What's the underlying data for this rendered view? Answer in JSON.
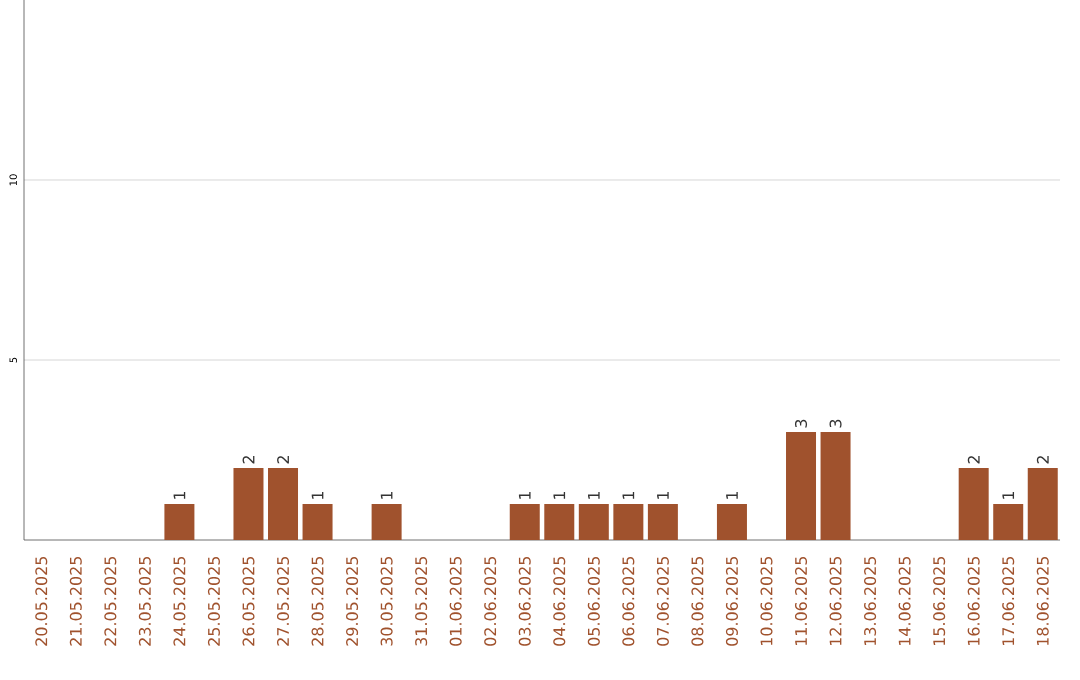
{
  "chart_data": {
    "type": "bar",
    "categories": [
      "20.05.2025",
      "21.05.2025",
      "22.05.2025",
      "23.05.2025",
      "24.05.2025",
      "25.05.2025",
      "26.05.2025",
      "27.05.2025",
      "28.05.2025",
      "29.05.2025",
      "30.05.2025",
      "31.05.2025",
      "01.06.2025",
      "02.06.2025",
      "03.06.2025",
      "04.06.2025",
      "05.06.2025",
      "06.06.2025",
      "07.06.2025",
      "08.06.2025",
      "09.06.2025",
      "10.06.2025",
      "11.06.2025",
      "12.06.2025",
      "13.06.2025",
      "14.06.2025",
      "15.06.2025",
      "16.06.2025",
      "17.06.2025",
      "18.06.2025"
    ],
    "values": [
      0,
      0,
      0,
      0,
      1,
      0,
      2,
      2,
      1,
      0,
      1,
      0,
      0,
      0,
      1,
      1,
      1,
      1,
      1,
      0,
      1,
      0,
      3,
      3,
      0,
      0,
      0,
      2,
      1,
      2
    ],
    "value_labels": [
      null,
      null,
      null,
      null,
      "1",
      null,
      "2",
      "2",
      "1",
      null,
      "1",
      null,
      null,
      null,
      "1",
      "1",
      "1",
      "1",
      "1",
      null,
      "1",
      null,
      "3",
      "3",
      null,
      null,
      null,
      "2",
      "1",
      "2"
    ],
    "color": "#a0522d",
    "ylim": [
      0,
      15
    ],
    "yticks": [
      5,
      10
    ],
    "grid": "y"
  }
}
